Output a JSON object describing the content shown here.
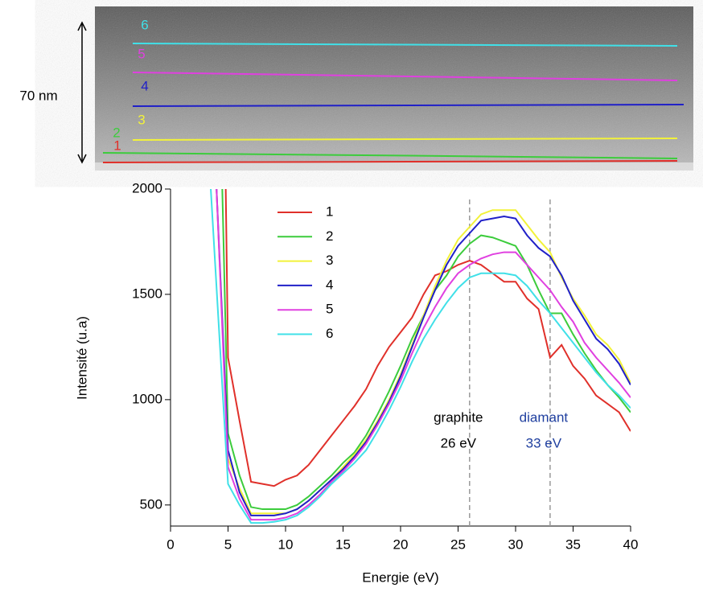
{
  "image_scale_label": "70 nm",
  "chart_data": {
    "type": "line",
    "xlabel": "Energie (eV)",
    "ylabel": "Intensité (u.a)",
    "xlim": [
      0,
      40
    ],
    "xticks": [
      0,
      5,
      10,
      15,
      20,
      25,
      30,
      35,
      40
    ],
    "ylim": [
      400,
      2000
    ],
    "yticks": [
      500,
      1000,
      1500,
      2000
    ],
    "series": [
      {
        "name": "1",
        "color": "#e0302a",
        "x": [
          4.8,
          5,
          6,
          7,
          8,
          9,
          10,
          11,
          12,
          13,
          14,
          15,
          16,
          17,
          18,
          19,
          20,
          21,
          22,
          23,
          24,
          25,
          26,
          27,
          28,
          29,
          30,
          31,
          32,
          33,
          34,
          35,
          36,
          37,
          38,
          39,
          40
        ],
        "values": [
          2000,
          1200,
          900,
          610,
          600,
          590,
          620,
          640,
          690,
          760,
          830,
          900,
          970,
          1050,
          1160,
          1250,
          1320,
          1390,
          1500,
          1590,
          1610,
          1640,
          1660,
          1640,
          1600,
          1560,
          1560,
          1480,
          1430,
          1200,
          1260,
          1160,
          1100,
          1020,
          980,
          940,
          850
        ]
      },
      {
        "name": "2",
        "color": "#3ccc3c",
        "x": [
          4.5,
          5,
          6,
          7,
          8,
          9,
          10,
          11,
          12,
          13,
          14,
          15,
          16,
          17,
          18,
          19,
          20,
          21,
          22,
          23,
          24,
          25,
          26,
          27,
          28,
          29,
          30,
          31,
          32,
          33,
          34,
          35,
          36,
          37,
          38,
          39,
          40
        ],
        "values": [
          2000,
          840,
          640,
          490,
          480,
          480,
          480,
          500,
          540,
          590,
          640,
          700,
          750,
          830,
          930,
          1040,
          1160,
          1290,
          1400,
          1520,
          1590,
          1680,
          1740,
          1780,
          1770,
          1750,
          1730,
          1640,
          1520,
          1410,
          1410,
          1310,
          1220,
          1140,
          1070,
          1010,
          940
        ]
      },
      {
        "name": "3",
        "color": "#f2f23a",
        "x": [
          4,
          5,
          6,
          7,
          8,
          9,
          10,
          11,
          12,
          13,
          14,
          15,
          16,
          17,
          18,
          19,
          20,
          21,
          22,
          23,
          24,
          25,
          26,
          27,
          28,
          29,
          30,
          31,
          32,
          33,
          34,
          35,
          36,
          37,
          38,
          39,
          40
        ],
        "values": [
          2000,
          720,
          580,
          460,
          460,
          460,
          460,
          480,
          520,
          570,
          620,
          680,
          740,
          810,
          900,
          1000,
          1120,
          1260,
          1400,
          1540,
          1660,
          1760,
          1820,
          1880,
          1900,
          1900,
          1900,
          1830,
          1760,
          1700,
          1580,
          1480,
          1400,
          1310,
          1260,
          1190,
          1080
        ]
      },
      {
        "name": "4",
        "color": "#2020c8",
        "x": [
          4,
          5,
          6,
          7,
          8,
          9,
          10,
          11,
          12,
          13,
          14,
          15,
          16,
          17,
          18,
          19,
          20,
          21,
          22,
          23,
          24,
          25,
          26,
          27,
          28,
          29,
          30,
          31,
          32,
          33,
          34,
          35,
          36,
          37,
          38,
          39,
          40
        ],
        "values": [
          2000,
          760,
          560,
          450,
          450,
          450,
          460,
          480,
          520,
          570,
          620,
          670,
          730,
          800,
          890,
          990,
          1110,
          1250,
          1390,
          1520,
          1640,
          1730,
          1790,
          1850,
          1860,
          1870,
          1860,
          1780,
          1720,
          1680,
          1590,
          1470,
          1380,
          1290,
          1240,
          1170,
          1070
        ]
      },
      {
        "name": "5",
        "color": "#e040e0",
        "x": [
          4,
          5,
          6,
          7,
          8,
          9,
          10,
          11,
          12,
          13,
          14,
          15,
          16,
          17,
          18,
          19,
          20,
          21,
          22,
          23,
          24,
          25,
          26,
          27,
          28,
          29,
          30,
          31,
          32,
          33,
          34,
          35,
          36,
          37,
          38,
          39,
          40
        ],
        "values": [
          2000,
          680,
          530,
          430,
          430,
          430,
          440,
          460,
          500,
          550,
          610,
          660,
          720,
          790,
          880,
          980,
          1090,
          1220,
          1340,
          1440,
          1530,
          1600,
          1640,
          1670,
          1690,
          1700,
          1700,
          1640,
          1580,
          1520,
          1440,
          1370,
          1270,
          1200,
          1140,
          1080,
          1010
        ]
      },
      {
        "name": "6",
        "color": "#40e0e8",
        "x": [
          3.5,
          5,
          6,
          7,
          8,
          9,
          10,
          11,
          12,
          13,
          14,
          15,
          16,
          17,
          18,
          19,
          20,
          21,
          22,
          23,
          24,
          25,
          26,
          27,
          28,
          29,
          30,
          31,
          32,
          33,
          34,
          35,
          36,
          37,
          38,
          39,
          40
        ],
        "values": [
          2000,
          600,
          500,
          415,
          415,
          420,
          430,
          450,
          490,
          540,
          600,
          650,
          700,
          760,
          850,
          950,
          1060,
          1180,
          1290,
          1380,
          1460,
          1530,
          1580,
          1600,
          1600,
          1600,
          1590,
          1540,
          1470,
          1410,
          1340,
          1270,
          1200,
          1130,
          1070,
          1020,
          960
        ]
      }
    ],
    "annotations": [
      {
        "x": 26,
        "lines": [
          "graphite",
          "26 eV"
        ],
        "color": "#000000"
      },
      {
        "x": 33,
        "lines": [
          "diamant",
          "33 eV"
        ],
        "color": "#1f3f9f"
      }
    ]
  }
}
